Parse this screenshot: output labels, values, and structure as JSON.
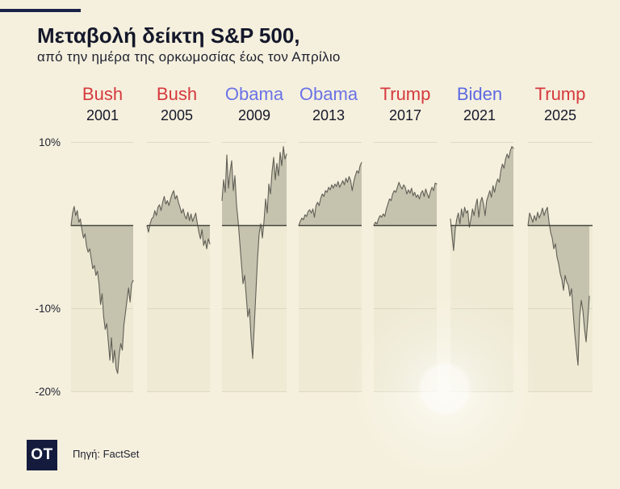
{
  "chart_data": {
    "type": "area",
    "title": "Μεταβολή δείκτη S&P 500,",
    "subtitle": "από την ημέρα της ορκωμοσίας έως τον Απρίλιο",
    "ylim": [
      -20,
      10
    ],
    "xlim": [
      0,
      40
    ],
    "baseline": 0,
    "grid": true,
    "yticks": [
      {
        "value": 10,
        "label": "10%"
      },
      {
        "value": -10,
        "label": "-10%"
      },
      {
        "value": -20,
        "label": "-20%"
      }
    ],
    "panels": [
      {
        "president": "Bush",
        "year": "2001",
        "name_color": "#d6393e",
        "values": [
          0,
          1.5,
          2.3,
          1.2,
          1.8,
          0.4,
          0.8,
          -0.5,
          -1.5,
          -1.0,
          -2.5,
          -3.2,
          -2.8,
          -4.0,
          -5.2,
          -4.8,
          -6.0,
          -5.5,
          -7.0,
          -9.5,
          -8.2,
          -11.0,
          -12.5,
          -11.8,
          -14.0,
          -16.2,
          -13.5,
          -16.5,
          -15.0,
          -17.2,
          -17.8,
          -15.5,
          -14.2,
          -15.0,
          -12.0,
          -10.5,
          -9.0,
          -7.5,
          -9.2,
          -7.0,
          -6.6
        ]
      },
      {
        "president": "Bush",
        "year": "2005",
        "name_color": "#d6393e",
        "values": [
          0,
          -0.8,
          0.2,
          0.8,
          1.0,
          1.8,
          1.2,
          2.2,
          2.5,
          1.8,
          2.8,
          3.5,
          2.6,
          3.0,
          2.4,
          3.2,
          3.8,
          4.2,
          3.2,
          3.6,
          2.8,
          2.2,
          1.5,
          2.0,
          1.2,
          0.8,
          1.6,
          0.6,
          1.4,
          0.5,
          1.0,
          1.5,
          0.3,
          -0.8,
          -1.6,
          -0.5,
          -2.4,
          -1.8,
          -2.8,
          -1.6,
          -2.2
        ]
      },
      {
        "president": "Obama",
        "year": "2009",
        "name_color": "#6a72e6",
        "values": [
          3.0,
          5.5,
          4.0,
          8.5,
          4.5,
          6.5,
          7.8,
          4.2,
          6.0,
          2.5,
          0.5,
          -2.0,
          -4.5,
          -7.0,
          -6.0,
          -8.5,
          -11.0,
          -10.0,
          -13.5,
          -16.0,
          -12.0,
          -8.0,
          -4.0,
          -1.0,
          0.2,
          -1.5,
          0.5,
          3.2,
          1.5,
          5.0,
          3.8,
          6.5,
          8.2,
          5.5,
          7.5,
          6.0,
          8.8,
          7.2,
          9.5,
          8.0,
          8.6
        ]
      },
      {
        "president": "Obama",
        "year": "2013",
        "name_color": "#6a72e6",
        "values": [
          0,
          0.5,
          0.9,
          0.7,
          1.3,
          1.1,
          1.7,
          1.9,
          1.5,
          2.0,
          1.0,
          2.4,
          2.8,
          2.4,
          3.3,
          3.8,
          3.5,
          4.2,
          4.0,
          4.6,
          4.3,
          4.9,
          4.5,
          5.0,
          4.7,
          5.3,
          4.6,
          5.0,
          5.4,
          4.9,
          5.7,
          5.2,
          5.9,
          5.4,
          4.2,
          5.3,
          6.0,
          6.6,
          6.3,
          7.2,
          7.6
        ]
      },
      {
        "president": "Trump",
        "year": "2017",
        "name_color": "#d6393e",
        "values": [
          0,
          0.4,
          0.2,
          0.8,
          1.2,
          1.0,
          1.4,
          1.1,
          2.0,
          2.6,
          3.2,
          3.0,
          3.8,
          4.2,
          4.0,
          4.6,
          5.2,
          4.7,
          4.4,
          4.9,
          4.6,
          3.8,
          4.3,
          3.9,
          4.5,
          3.6,
          4.0,
          3.4,
          3.7,
          3.2,
          3.9,
          4.2,
          3.5,
          4.4,
          3.8,
          3.3,
          4.1,
          4.6,
          4.2,
          5.1,
          5.0
        ]
      },
      {
        "president": "Biden",
        "year": "2021",
        "name_color": "#5d68e2",
        "values": [
          0.8,
          -1.2,
          -3.0,
          -0.5,
          0.8,
          1.5,
          0.2,
          2.0,
          1.0,
          2.2,
          1.5,
          1.8,
          -0.2,
          0.8,
          2.0,
          1.2,
          2.4,
          3.2,
          1.0,
          2.8,
          3.4,
          2.6,
          1.2,
          3.0,
          3.6,
          4.2,
          3.4,
          4.8,
          4.0,
          5.0,
          5.6,
          5.2,
          6.6,
          7.4,
          6.9,
          8.0,
          8.6,
          8.1,
          9.0,
          9.5,
          9.3
        ]
      },
      {
        "president": "Trump",
        "year": "2025",
        "name_color": "#d6393e",
        "values": [
          0,
          1.5,
          1.0,
          0.4,
          1.2,
          0.6,
          1.6,
          0.9,
          1.4,
          2.1,
          1.2,
          1.8,
          2.2,
          0.5,
          -0.8,
          -1.5,
          -2.8,
          -2.2,
          -3.8,
          -4.6,
          -5.8,
          -6.5,
          -7.8,
          -6.0,
          -6.8,
          -7.2,
          -8.5,
          -7.6,
          -10.5,
          -13.0,
          -15.0,
          -16.8,
          -11.0,
          -9.0,
          -10.2,
          -12.4,
          -14.0,
          -11.5,
          -8.5
        ]
      }
    ]
  },
  "footer": {
    "logo_text": "OT",
    "source": "Πηγή: FactSet"
  },
  "colors": {
    "background": "#f5f0dd",
    "panel_fill": "#eeead4",
    "grid": "#ddd8c0",
    "area_fill": "#c5c2ae",
    "series_line": "#615f56",
    "zero_line": "#46463f",
    "accent": "#1b2349",
    "logo_bg": "#151b3d"
  }
}
